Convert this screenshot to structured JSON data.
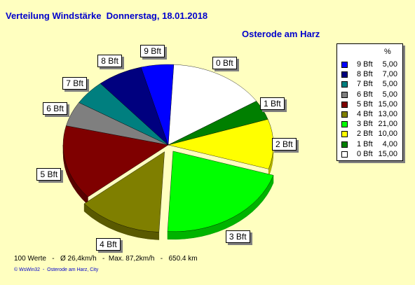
{
  "title": "Verteilung Windstärke  Donnerstag, 18.01.2018",
  "subtitle": "Osterode am Harz",
  "footer": "100 Werte   -   Ø 26,4km/h   -  Max. 87,2km/h   -   650.4 km",
  "credit": "© WsWin32  -  Osterode am Harz, City",
  "legend_header": "%",
  "chart_data": {
    "type": "pie",
    "title": "Verteilung Windstärke  Donnerstag, 18.01.2018",
    "subtitle": "Osterode am Harz",
    "unit": "%",
    "legend_position": "right",
    "slices": [
      {
        "label": "0 Bft",
        "value": 15.0,
        "legend_value": "15,00",
        "color": "#FFFFFF"
      },
      {
        "label": "1 Bft",
        "value": 4.0,
        "legend_value": "4,00",
        "color": "#007F00"
      },
      {
        "label": "2 Bft",
        "value": 10.0,
        "legend_value": "10,00",
        "color": "#FFFF00"
      },
      {
        "label": "3 Bft",
        "value": 21.0,
        "legend_value": "21,00",
        "color": "#00FF00"
      },
      {
        "label": "4 Bft",
        "value": 13.0,
        "legend_value": "13,00",
        "color": "#7F7F00"
      },
      {
        "label": "5 Bft",
        "value": 15.0,
        "legend_value": "15,00",
        "color": "#7F0000"
      },
      {
        "label": "6 Bft",
        "value": 5.0,
        "legend_value": "5,00",
        "color": "#7F7F7F"
      },
      {
        "label": "7 Bft",
        "value": 5.0,
        "legend_value": "5,00",
        "color": "#007F7F"
      },
      {
        "label": "8 Bft",
        "value": 7.0,
        "legend_value": "7,00",
        "color": "#00007F"
      },
      {
        "label": "9 Bft",
        "value": 5.0,
        "legend_value": "5,00",
        "color": "#0000FF"
      }
    ]
  }
}
